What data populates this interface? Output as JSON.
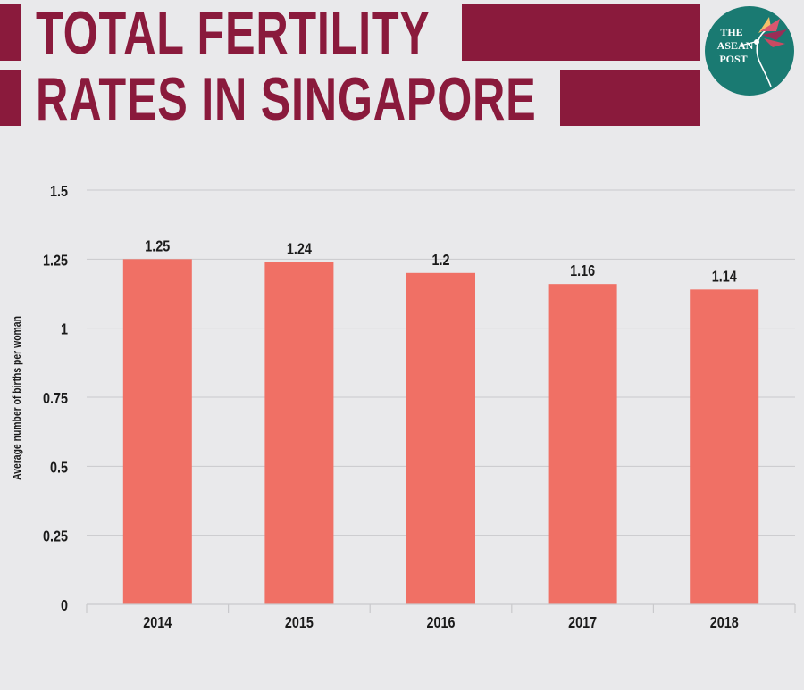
{
  "header": {
    "title_line1": "TOTAL FERTILITY",
    "title_line2": "RATES IN SINGAPORE",
    "logo": {
      "line1": "THE",
      "line2": "ASEAN",
      "line3": "POST",
      "icon": "hummingbird-icon"
    }
  },
  "colors": {
    "title": "#8a1a3c",
    "bar": "#f07065",
    "background": "#e9e9eb",
    "logo_circle": "#1a7a72",
    "grid": "#c9c9cc",
    "text": "#1a1a1a"
  },
  "chart_data": {
    "type": "bar",
    "categories": [
      "2014",
      "2015",
      "2016",
      "2017",
      "2018"
    ],
    "values": [
      1.25,
      1.24,
      1.2,
      1.16,
      1.14
    ],
    "value_labels": [
      "1.25",
      "1.24",
      "1.2",
      "1.16",
      "1.14"
    ],
    "ylabel": "Average number of births per woman",
    "xlabel": "",
    "ylim": [
      0,
      1.5
    ],
    "yticks": [
      0,
      0.25,
      0.5,
      0.75,
      1,
      1.25,
      1.5
    ],
    "ytick_labels": [
      "0",
      "0.25",
      "0.5",
      "0.75",
      "1",
      "1.25",
      "1.5"
    ],
    "grid": true,
    "legend": "none"
  }
}
